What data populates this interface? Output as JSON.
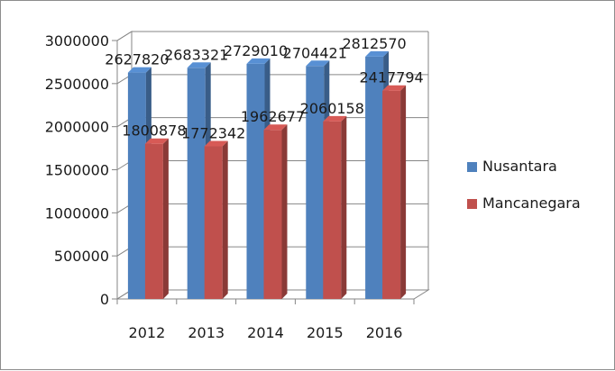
{
  "chart_data": {
    "type": "bar",
    "style": "3d-clustered-column",
    "categories": [
      "2012",
      "2013",
      "2014",
      "2015",
      "2016"
    ],
    "series": [
      {
        "name": "Nusantara",
        "color": "#4f81bd",
        "values": [
          2627820,
          2683321,
          2729010,
          2704421,
          2812570
        ]
      },
      {
        "name": "Mancanegara",
        "color": "#c0504d",
        "values": [
          1800878,
          1772342,
          1962677,
          2060158,
          2417794
        ]
      }
    ],
    "data_labels": {
      "Nusantara": [
        "2627820",
        "2683321",
        "2729010",
        "2704421",
        "2812570"
      ],
      "Mancanegara": [
        "1800878",
        "1772342",
        "1962677",
        "2060158",
        "2417794"
      ]
    },
    "ylim": [
      0,
      3000000
    ],
    "yticks": [
      "0",
      "500000",
      "1000000",
      "1500000",
      "2000000",
      "2500000",
      "3000000"
    ],
    "grid": true,
    "legend": "right"
  }
}
